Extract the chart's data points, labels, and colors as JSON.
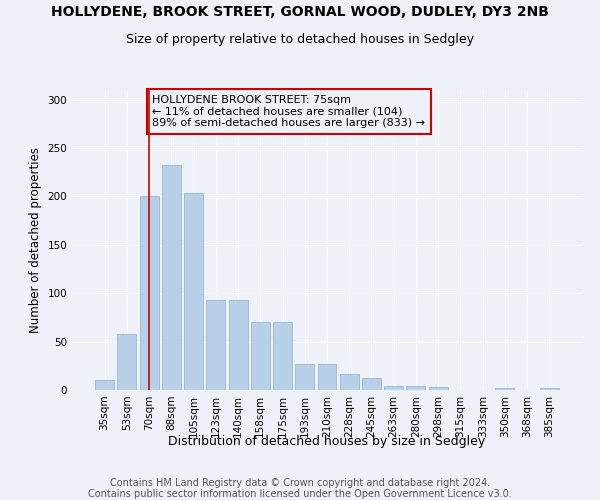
{
  "title": "HOLLYDENE, BROOK STREET, GORNAL WOOD, DUDLEY, DY3 2NB",
  "subtitle": "Size of property relative to detached houses in Sedgley",
  "xlabel": "Distribution of detached houses by size in Sedgley",
  "ylabel": "Number of detached properties",
  "categories": [
    "35sqm",
    "53sqm",
    "70sqm",
    "88sqm",
    "105sqm",
    "123sqm",
    "140sqm",
    "158sqm",
    "175sqm",
    "193sqm",
    "210sqm",
    "228sqm",
    "245sqm",
    "263sqm",
    "280sqm",
    "298sqm",
    "315sqm",
    "333sqm",
    "350sqm",
    "368sqm",
    "385sqm"
  ],
  "values": [
    10,
    58,
    200,
    233,
    204,
    93,
    93,
    70,
    70,
    27,
    27,
    17,
    12,
    4,
    4,
    3,
    0,
    0,
    2,
    0,
    2
  ],
  "bar_color": "#b8cfe8",
  "bar_edgecolor": "#8ab0d0",
  "vline_x_index": 2,
  "vline_color": "#cc0000",
  "annotation_text": "HOLLYDENE BROOK STREET: 75sqm\n← 11% of detached houses are smaller (104)\n89% of semi-detached houses are larger (833) →",
  "annotation_box_edgecolor": "#cc0000",
  "ylim": [
    0,
    310
  ],
  "yticks": [
    0,
    50,
    100,
    150,
    200,
    250,
    300
  ],
  "footer1": "Contains HM Land Registry data © Crown copyright and database right 2024.",
  "footer2": "Contains public sector information licensed under the Open Government Licence v3.0.",
  "bg_color": "#eef2f8",
  "grid_color": "#ffffff",
  "title_fontsize": 10,
  "subtitle_fontsize": 9,
  "xlabel_fontsize": 9,
  "ylabel_fontsize": 8.5,
  "tick_fontsize": 7.5,
  "annotation_fontsize": 8,
  "footer_fontsize": 7
}
